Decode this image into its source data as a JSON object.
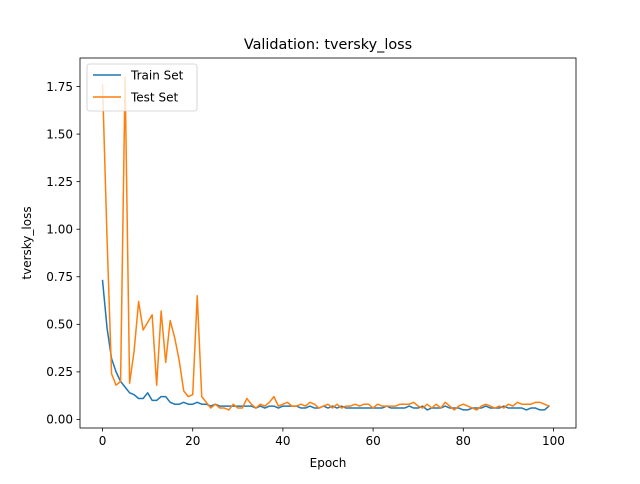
{
  "chart_data": {
    "type": "line",
    "title": "Validation: tversky_loss",
    "xlabel": "Epoch",
    "ylabel": "tversky_loss",
    "xlim": [
      -5,
      105
    ],
    "ylim": [
      -0.045,
      1.9
    ],
    "xticks": [
      0,
      20,
      40,
      60,
      80,
      100
    ],
    "xtick_labels": [
      "0",
      "20",
      "40",
      "60",
      "80",
      "100"
    ],
    "yticks": [
      0.0,
      0.25,
      0.5,
      0.75,
      1.0,
      1.25,
      1.5,
      1.75
    ],
    "ytick_labels": [
      "0.00",
      "0.25",
      "0.50",
      "0.75",
      "1.00",
      "1.25",
      "1.50",
      "1.75"
    ],
    "grid": false,
    "legend_position": "top-left",
    "series": [
      {
        "name": "Train Set",
        "color": "#1f77b4",
        "x": [
          0,
          1,
          2,
          3,
          4,
          5,
          6,
          7,
          8,
          9,
          10,
          11,
          12,
          13,
          14,
          15,
          16,
          17,
          18,
          19,
          20,
          21,
          22,
          23,
          24,
          25,
          26,
          27,
          28,
          29,
          30,
          31,
          32,
          33,
          34,
          35,
          36,
          37,
          38,
          39,
          40,
          41,
          42,
          43,
          44,
          45,
          46,
          47,
          48,
          49,
          50,
          51,
          52,
          53,
          54,
          55,
          56,
          57,
          58,
          59,
          60,
          61,
          62,
          63,
          64,
          65,
          66,
          67,
          68,
          69,
          70,
          71,
          72,
          73,
          74,
          75,
          76,
          77,
          78,
          79,
          80,
          81,
          82,
          83,
          84,
          85,
          86,
          87,
          88,
          89,
          90,
          91,
          92,
          93,
          94,
          95,
          96,
          97,
          98,
          99
        ],
        "values": [
          0.73,
          0.48,
          0.32,
          0.25,
          0.2,
          0.17,
          0.14,
          0.13,
          0.11,
          0.11,
          0.14,
          0.1,
          0.1,
          0.12,
          0.12,
          0.09,
          0.08,
          0.08,
          0.09,
          0.08,
          0.08,
          0.09,
          0.08,
          0.08,
          0.07,
          0.08,
          0.07,
          0.07,
          0.07,
          0.07,
          0.07,
          0.07,
          0.07,
          0.07,
          0.06,
          0.07,
          0.06,
          0.07,
          0.07,
          0.06,
          0.07,
          0.07,
          0.07,
          0.07,
          0.06,
          0.06,
          0.07,
          0.06,
          0.06,
          0.07,
          0.06,
          0.07,
          0.06,
          0.07,
          0.06,
          0.06,
          0.06,
          0.06,
          0.06,
          0.06,
          0.06,
          0.06,
          0.06,
          0.07,
          0.06,
          0.06,
          0.06,
          0.06,
          0.07,
          0.06,
          0.06,
          0.07,
          0.05,
          0.06,
          0.06,
          0.06,
          0.07,
          0.06,
          0.06,
          0.06,
          0.05,
          0.05,
          0.06,
          0.06,
          0.06,
          0.07,
          0.06,
          0.06,
          0.06,
          0.07,
          0.06,
          0.06,
          0.06,
          0.06,
          0.05,
          0.06,
          0.06,
          0.05,
          0.05,
          0.07
        ]
      },
      {
        "name": "Test Set",
        "color": "#ff7f0e",
        "x": [
          0,
          1,
          2,
          3,
          4,
          5,
          6,
          7,
          8,
          9,
          10,
          11,
          12,
          13,
          14,
          15,
          16,
          17,
          18,
          19,
          20,
          21,
          22,
          23,
          24,
          25,
          26,
          27,
          28,
          29,
          30,
          31,
          32,
          33,
          34,
          35,
          36,
          37,
          38,
          39,
          40,
          41,
          42,
          43,
          44,
          45,
          46,
          47,
          48,
          49,
          50,
          51,
          52,
          53,
          54,
          55,
          56,
          57,
          58,
          59,
          60,
          61,
          62,
          63,
          64,
          65,
          66,
          67,
          68,
          69,
          70,
          71,
          72,
          73,
          74,
          75,
          76,
          77,
          78,
          79,
          80,
          81,
          82,
          83,
          84,
          85,
          86,
          87,
          88,
          89,
          90,
          91,
          92,
          93,
          94,
          95,
          96,
          97,
          98,
          99
        ],
        "values": [
          1.76,
          0.95,
          0.24,
          0.18,
          0.2,
          1.8,
          0.19,
          0.36,
          0.62,
          0.47,
          0.51,
          0.55,
          0.18,
          0.57,
          0.3,
          0.52,
          0.43,
          0.31,
          0.15,
          0.12,
          0.13,
          0.65,
          0.12,
          0.09,
          0.06,
          0.08,
          0.06,
          0.06,
          0.05,
          0.08,
          0.06,
          0.06,
          0.11,
          0.08,
          0.06,
          0.08,
          0.07,
          0.09,
          0.12,
          0.07,
          0.08,
          0.09,
          0.07,
          0.07,
          0.08,
          0.07,
          0.09,
          0.08,
          0.06,
          0.07,
          0.08,
          0.06,
          0.08,
          0.06,
          0.07,
          0.07,
          0.08,
          0.07,
          0.08,
          0.08,
          0.06,
          0.08,
          0.07,
          0.07,
          0.07,
          0.07,
          0.08,
          0.08,
          0.08,
          0.09,
          0.07,
          0.06,
          0.08,
          0.06,
          0.08,
          0.06,
          0.09,
          0.07,
          0.05,
          0.07,
          0.08,
          0.07,
          0.06,
          0.05,
          0.07,
          0.08,
          0.07,
          0.06,
          0.07,
          0.06,
          0.08,
          0.07,
          0.09,
          0.08,
          0.08,
          0.08,
          0.09,
          0.09,
          0.08,
          0.07
        ]
      }
    ]
  }
}
